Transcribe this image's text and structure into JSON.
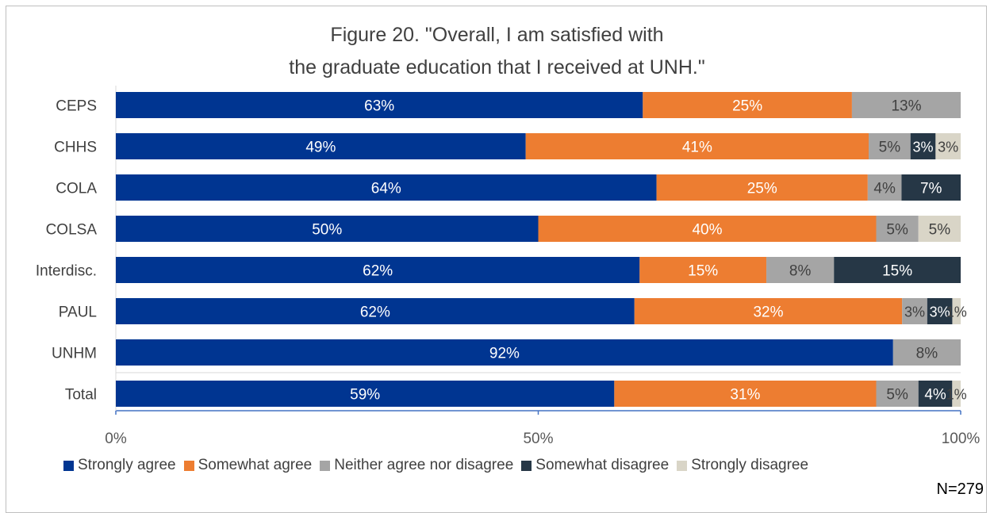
{
  "n_label": "N=279",
  "chart_data": {
    "type": "bar",
    "orientation": "horizontal",
    "stacked": true,
    "title": "Figure 20. \"Overall, I am satisfied with the graduate education that I received at UNH.\"",
    "title_lines": [
      "Figure 20. \"Overall, I am satisfied with",
      "the graduate education that I received at UNH.\""
    ],
    "categories": [
      "CEPS",
      "CHHS",
      "COLA",
      "COLSA",
      "Interdisc.",
      "PAUL",
      "UNHM",
      "Total"
    ],
    "series": [
      {
        "name": "Strongly agree",
        "color": "#003591",
        "label_color": "#ffffff",
        "values": [
          63,
          49,
          64,
          50,
          62,
          62,
          92,
          59
        ]
      },
      {
        "name": "Somewhat agree",
        "color": "#ed7d31",
        "label_color": "#ffffff",
        "values": [
          25,
          41,
          25,
          40,
          15,
          32,
          0,
          31
        ]
      },
      {
        "name": "Neither agree nor disagree",
        "color": "#a5a5a5",
        "label_color": "#404040",
        "values": [
          13,
          5,
          4,
          5,
          8,
          3,
          8,
          5
        ]
      },
      {
        "name": "Somewhat disagree",
        "color": "#263746",
        "label_color": "#ffffff",
        "values": [
          0,
          3,
          7,
          0,
          15,
          3,
          0,
          4
        ]
      },
      {
        "name": "Strongly disagree",
        "color": "#d9d5c7",
        "label_color": "#404040",
        "values": [
          0,
          3,
          0,
          5,
          0,
          1,
          0,
          1
        ]
      }
    ],
    "xlim": [
      0,
      100
    ],
    "x_ticks": [
      0,
      50,
      100
    ],
    "x_tick_labels": [
      "0%",
      "50%",
      "100%"
    ],
    "data_label_suffix": "%",
    "legend_position": "bottom",
    "grid": false
  }
}
